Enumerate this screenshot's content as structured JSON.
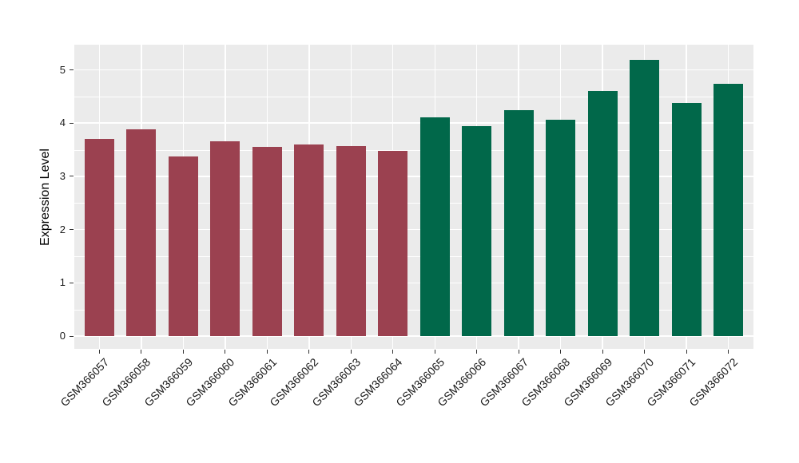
{
  "chart_data": {
    "type": "bar",
    "title": "",
    "ylabel": "Expression Level",
    "xlabel": "",
    "categories": [
      "GSM366057",
      "GSM366058",
      "GSM366059",
      "GSM366060",
      "GSM366061",
      "GSM366062",
      "GSM366063",
      "GSM366064",
      "GSM366065",
      "GSM366066",
      "GSM366067",
      "GSM366068",
      "GSM366069",
      "GSM366070",
      "GSM366071",
      "GSM366072"
    ],
    "values": [
      3.7,
      3.88,
      3.37,
      3.66,
      3.55,
      3.6,
      3.57,
      3.48,
      4.11,
      3.95,
      4.24,
      4.06,
      4.61,
      5.19,
      4.38,
      4.74
    ],
    "bar_colors": [
      "#9B4150",
      "#9B4150",
      "#9B4150",
      "#9B4150",
      "#9B4150",
      "#9B4150",
      "#9B4150",
      "#9B4150",
      "#01684A",
      "#01684A",
      "#01684A",
      "#01684A",
      "#01684A",
      "#01684A",
      "#01684A",
      "#01684A"
    ],
    "group_colors": {
      "left_group": "#9B4150",
      "right_group": "#01684A"
    },
    "yticks": [
      0,
      1,
      2,
      3,
      4,
      5
    ],
    "minor_yticks": [
      0.5,
      1.5,
      2.5,
      3.5,
      4.5
    ],
    "ylim": [
      0,
      5.47
    ],
    "bar_width_fraction": 0.7,
    "grid": "on",
    "legend_position": "none",
    "panel_bg": "#EBEBEB",
    "grid_color": "#FFFFFF",
    "axis_text_color": "#1A1A1A"
  }
}
